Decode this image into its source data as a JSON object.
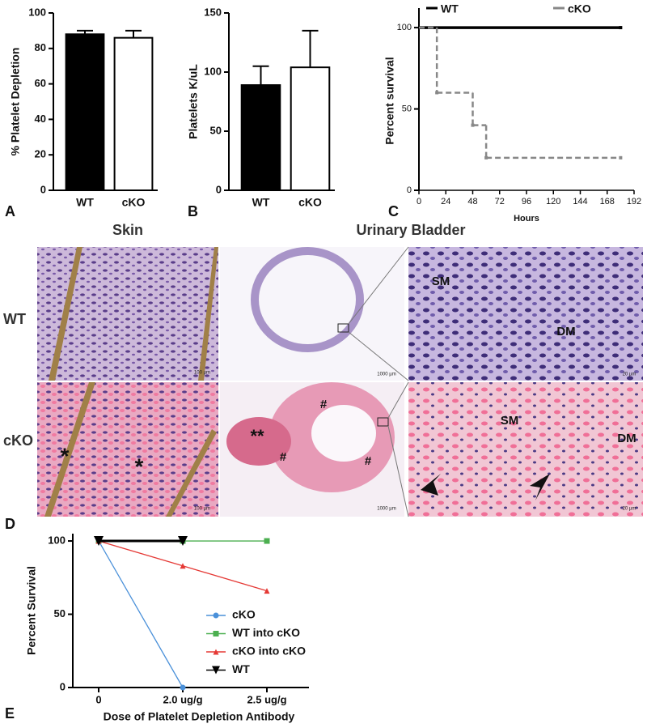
{
  "chart_data": [
    {
      "type": "bar",
      "panel_label": "A",
      "y_label": "% Platelet Depletion",
      "categories": [
        "WT",
        "cKO"
      ],
      "values": [
        88,
        86
      ],
      "errors": [
        2,
        4
      ],
      "colors": [
        "#000000",
        "#ffffff"
      ],
      "ylim": [
        0,
        100
      ],
      "yticks": [
        0,
        20,
        40,
        60,
        80,
        100
      ]
    },
    {
      "type": "bar",
      "panel_label": "B",
      "y_label": "Platelets K/uL",
      "categories": [
        "WT",
        "cKO"
      ],
      "values": [
        89,
        104
      ],
      "errors": [
        16,
        31
      ],
      "colors": [
        "#000000",
        "#ffffff"
      ],
      "ylim": [
        0,
        150
      ],
      "yticks": [
        0,
        50,
        100,
        150
      ]
    },
    {
      "type": "step",
      "panel_label": "C",
      "x_label": "Hours",
      "y_label": "Percent survival",
      "xlim": [
        0,
        192
      ],
      "xticks": [
        0,
        24,
        48,
        72,
        96,
        120,
        144,
        168,
        192
      ],
      "ylim": [
        0,
        110
      ],
      "yticks": [
        0,
        50,
        100
      ],
      "series": [
        {
          "name": "WT",
          "color": "#000000",
          "dash": false,
          "x": [
            0,
            180
          ],
          "values": [
            100,
            100
          ]
        },
        {
          "name": "cKO",
          "color": "#888888",
          "dash": true,
          "x": [
            0,
            16,
            48,
            60,
            180
          ],
          "values": [
            100,
            60,
            40,
            20,
            20
          ]
        }
      ]
    },
    {
      "type": "line",
      "panel_label": "E",
      "x_label": "Dose of Platelet Depletion Antibody",
      "y_label": "Percent Survival",
      "categories": [
        "0",
        "2.0 ug/g",
        "2.5 ug/g"
      ],
      "ylim": [
        0,
        105
      ],
      "yticks": [
        0,
        50,
        100
      ],
      "series": [
        {
          "name": "cKO",
          "color": "#4a90d9",
          "marker": "circle",
          "values": [
            100,
            0,
            null
          ]
        },
        {
          "name": "WT into cKO",
          "color": "#4caf50",
          "marker": "square",
          "values": [
            100,
            100,
            100
          ]
        },
        {
          "name": "cKO into cKO",
          "color": "#e53935",
          "marker": "triangle",
          "values": [
            100,
            83,
            66
          ]
        },
        {
          "name": "WT",
          "color": "#000000",
          "marker": "down-triangle",
          "values": [
            100,
            100,
            null
          ]
        }
      ]
    }
  ],
  "histology": {
    "panel_label": "D",
    "columns": [
      "Skin",
      "Urinary Bladder"
    ],
    "rows": [
      "WT",
      "cKO"
    ],
    "annotations": {
      "wt_sm": "SM",
      "wt_dm": "DM",
      "cko_sm": "SM",
      "cko_dm": "DM",
      "double_star": "**",
      "hash_1": "#",
      "hash_2": "#",
      "hash_3": "#",
      "star_1": "*",
      "star_2": "*"
    },
    "scale_bars": [
      "100 µm",
      "1000 µm",
      "20 µm",
      "100 µm",
      "1000 µm",
      "20 µm"
    ]
  }
}
